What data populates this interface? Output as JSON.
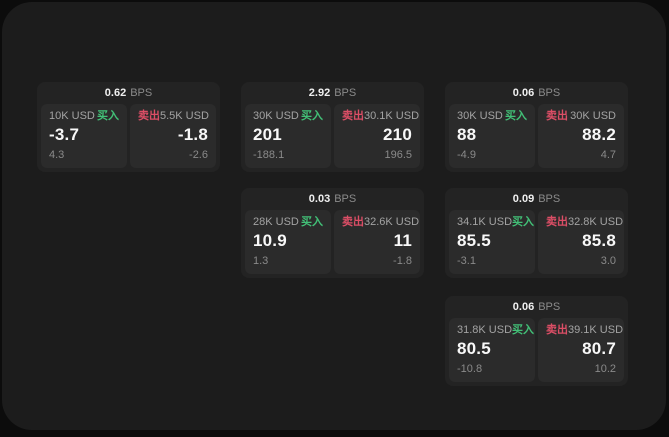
{
  "colors": {
    "buy_green": "#42c077",
    "sell_red": "#dc4e66"
  },
  "cards": [
    {
      "bps": "0.62",
      "unit": "BPS",
      "buy": {
        "amount": "10K USD",
        "badge": "买入",
        "value": "-3.7",
        "sub": "4.3"
      },
      "sell": {
        "badge": "卖出",
        "amount": "5.5K USD",
        "value": "-1.8",
        "sub": "-2.6"
      }
    },
    {
      "bps": "2.92",
      "unit": "BPS",
      "buy": {
        "amount": "30K USD",
        "badge": "买入",
        "value": "201",
        "sub": "-188.1"
      },
      "sell": {
        "badge": "卖出",
        "amount": "30.1K USD",
        "value": "210",
        "sub": "196.5"
      }
    },
    {
      "bps": "0.06",
      "unit": "BPS",
      "buy": {
        "amount": "30K USD",
        "badge": "买入",
        "value": "88",
        "sub": "-4.9"
      },
      "sell": {
        "badge": "卖出",
        "amount": "30K USD",
        "value": "88.2",
        "sub": "4.7"
      }
    },
    {
      "bps": "0.03",
      "unit": "BPS",
      "buy": {
        "amount": "28K USD",
        "badge": "买入",
        "value": "10.9",
        "sub": "1.3"
      },
      "sell": {
        "badge": "卖出",
        "amount": "32.6K USD",
        "value": "11",
        "sub": "-1.8"
      }
    },
    {
      "bps": "0.09",
      "unit": "BPS",
      "buy": {
        "amount": "34.1K USD",
        "badge": "买入",
        "value": "85.5",
        "sub": "-3.1"
      },
      "sell": {
        "badge": "卖出",
        "amount": "32.8K USD",
        "value": "85.8",
        "sub": "3.0"
      }
    },
    {
      "bps": "0.06",
      "unit": "BPS",
      "buy": {
        "amount": "31.8K USD",
        "badge": "买入",
        "value": "80.5",
        "sub": "-10.8"
      },
      "sell": {
        "badge": "卖出",
        "amount": "39.1K USD",
        "value": "80.7",
        "sub": "10.2"
      }
    }
  ]
}
